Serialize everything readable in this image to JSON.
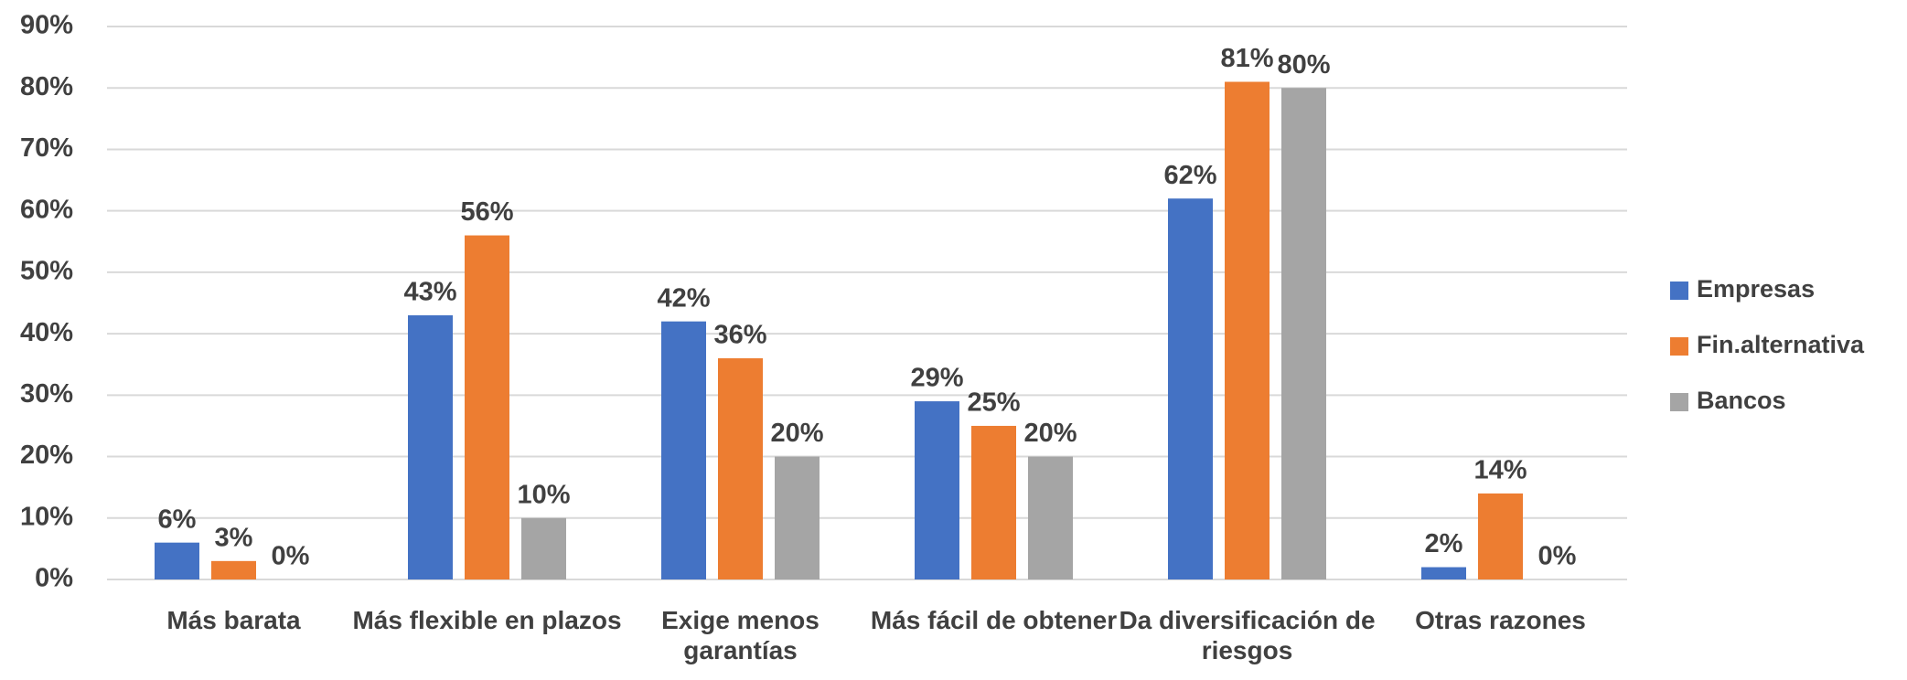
{
  "chart_data": {
    "type": "bar",
    "categories": [
      "Más barata",
      "Más flexible en plazos",
      "Exige menos garantías",
      "Más fácil de obtener",
      "Da diversificación de riesgos",
      "Otras razones"
    ],
    "series": [
      {
        "name": "Empresas",
        "color": "#4472c4",
        "values": [
          6,
          43,
          42,
          29,
          62,
          2
        ],
        "value_labels": [
          "6%",
          "43%",
          "42%",
          "29%",
          "62%",
          "2%"
        ]
      },
      {
        "name": "Fin.alternativa",
        "color": "#ed7d31",
        "values": [
          3,
          56,
          36,
          25,
          81,
          14
        ],
        "value_labels": [
          "3%",
          "56%",
          "36%",
          "25%",
          "81%",
          "14%"
        ]
      },
      {
        "name": "Bancos",
        "color": "#a5a5a5",
        "values": [
          0,
          10,
          20,
          20,
          80,
          0
        ],
        "value_labels": [
          "0%",
          "10%",
          "20%",
          "20%",
          "80%",
          "0%"
        ]
      }
    ],
    "ylim": [
      0,
      90
    ],
    "yticks": [
      {
        "value": 0,
        "label": "0%"
      },
      {
        "value": 10,
        "label": "10%"
      },
      {
        "value": 20,
        "label": "20%"
      },
      {
        "value": 30,
        "label": "30%"
      },
      {
        "value": 40,
        "label": "40%"
      },
      {
        "value": 50,
        "label": "50%"
      },
      {
        "value": 60,
        "label": "60%"
      },
      {
        "value": 70,
        "label": "70%"
      },
      {
        "value": 80,
        "label": "80%"
      },
      {
        "value": 90,
        "label": "90%"
      }
    ],
    "grid": true,
    "legend": "right"
  }
}
